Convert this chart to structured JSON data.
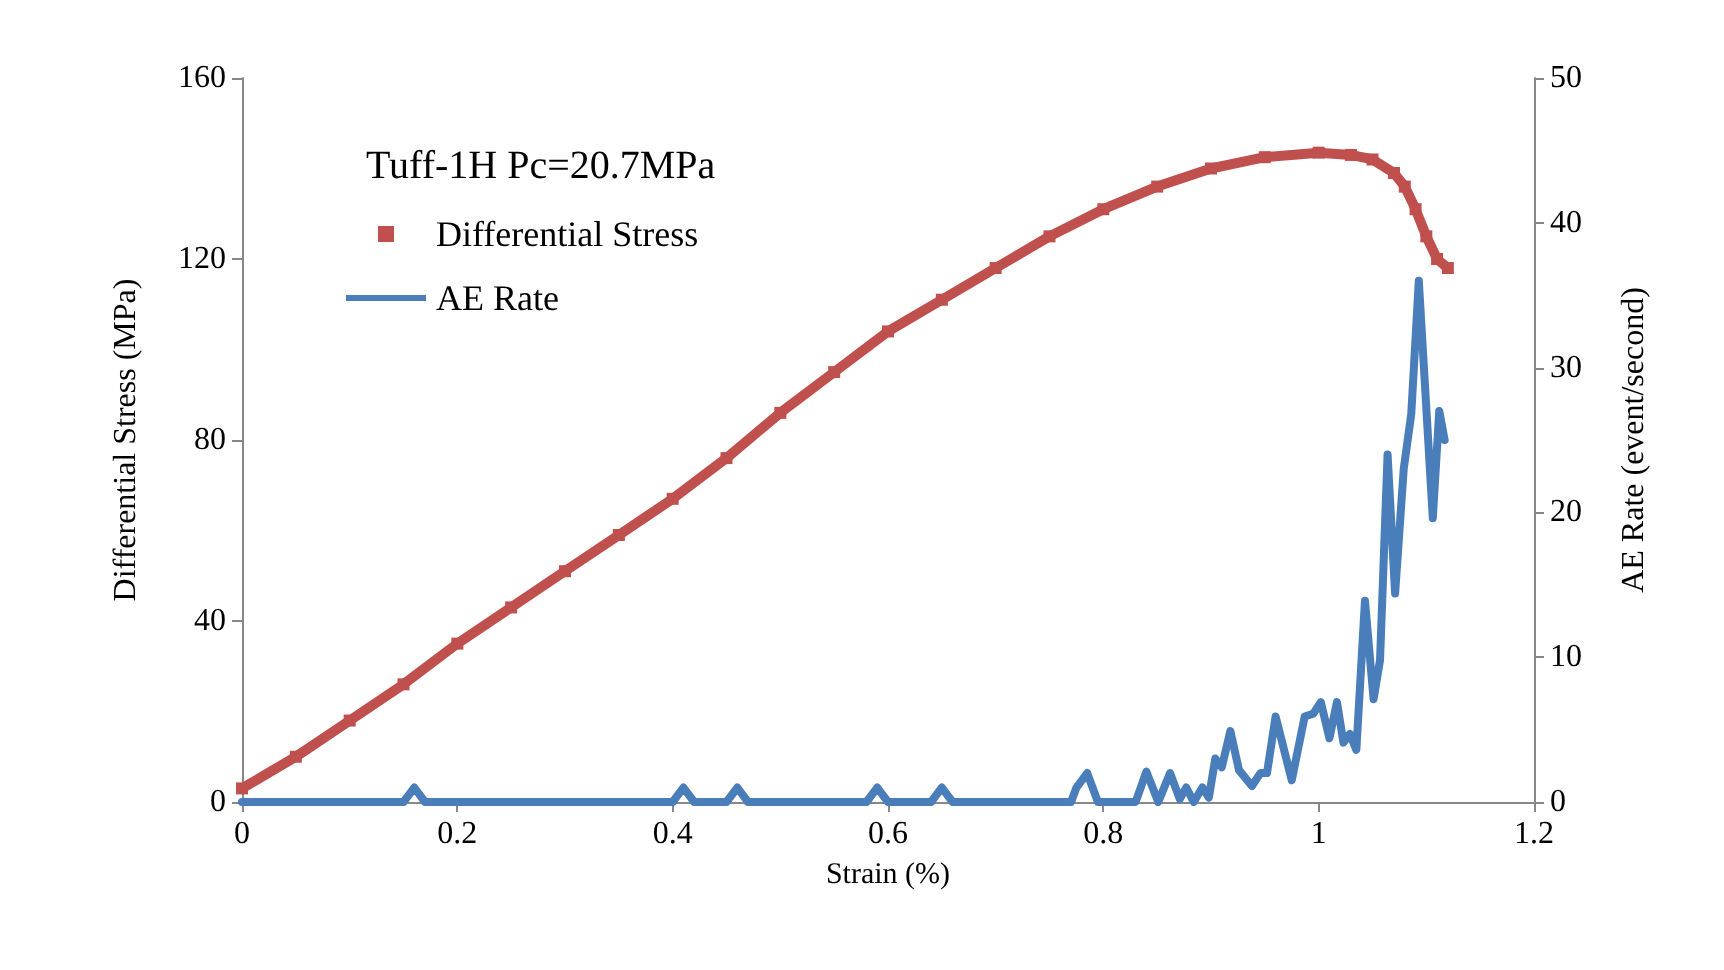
{
  "chart_data": {
    "type": "line",
    "title": "Tuff-1H Pc=20.7MPa",
    "xlabel": "Strain (%)",
    "ylabel": "Differential Stress (MPa)",
    "y2label": "AE Rate (event/second)",
    "xlim": [
      0,
      1.2
    ],
    "xticks": [
      0,
      0.2,
      0.4,
      0.6,
      0.8,
      1,
      1.2
    ],
    "ylim": [
      0,
      160
    ],
    "yticks": [
      0,
      40,
      80,
      120,
      160
    ],
    "y2lim": [
      0,
      50
    ],
    "y2ticks": [
      0,
      10,
      20,
      30,
      40,
      50
    ],
    "grid": false,
    "legend": "top left",
    "series": [
      {
        "name": "Differential Stress",
        "color": "#c0504d",
        "marker": "square",
        "x": [
          0,
          0.05,
          0.1,
          0.15,
          0.2,
          0.25,
          0.3,
          0.35,
          0.4,
          0.45,
          0.5,
          0.55,
          0.6,
          0.65,
          0.7,
          0.75,
          0.8,
          0.85,
          0.9,
          0.95,
          1.0,
          1.03,
          1.05,
          1.07,
          1.08,
          1.09,
          1.1,
          1.11,
          1.12
        ],
        "values": [
          3,
          10,
          18,
          26,
          35,
          43,
          51,
          59,
          67,
          76,
          86,
          95,
          104,
          111,
          118,
          125,
          131,
          136,
          140,
          142.5,
          143.5,
          143,
          142,
          139,
          136,
          131,
          125,
          120,
          118
        ]
      },
      {
        "name": "AE Rate",
        "color": "#4a7ebb",
        "marker": "none",
        "axis": "y2",
        "x": [
          0,
          0.15,
          0.16,
          0.17,
          0.4,
          0.41,
          0.42,
          0.45,
          0.46,
          0.47,
          0.58,
          0.59,
          0.6,
          0.64,
          0.65,
          0.66,
          0.77,
          0.775,
          0.785,
          0.795,
          0.83,
          0.84,
          0.851,
          0.862,
          0.871,
          0.877,
          0.884,
          0.892,
          0.898,
          0.904,
          0.91,
          0.918,
          0.926,
          0.938,
          0.946,
          0.952,
          0.96,
          0.975,
          0.987,
          0.995,
          1.002,
          1.01,
          1.017,
          1.023,
          1.029,
          1.035,
          1.043,
          1.051,
          1.057,
          1.064,
          1.071,
          1.079,
          1.086,
          1.093,
          1.106,
          1.112,
          1.117
        ],
        "values": [
          0,
          0,
          1,
          0,
          0,
          1,
          0,
          0,
          1,
          0,
          0,
          1,
          0,
          0,
          1,
          0,
          0,
          1,
          2,
          0,
          0,
          2.1,
          0,
          2,
          0.2,
          1,
          0,
          1,
          0.3,
          3,
          2.4,
          4.9,
          2.2,
          1.1,
          2,
          2,
          5.9,
          1.5,
          5.9,
          6.1,
          6.9,
          4.4,
          6.9,
          4.1,
          4.7,
          3.6,
          13.9,
          7.1,
          9.8,
          24,
          14.4,
          23,
          26.8,
          36,
          19.6,
          27,
          25
        ]
      }
    ]
  }
}
